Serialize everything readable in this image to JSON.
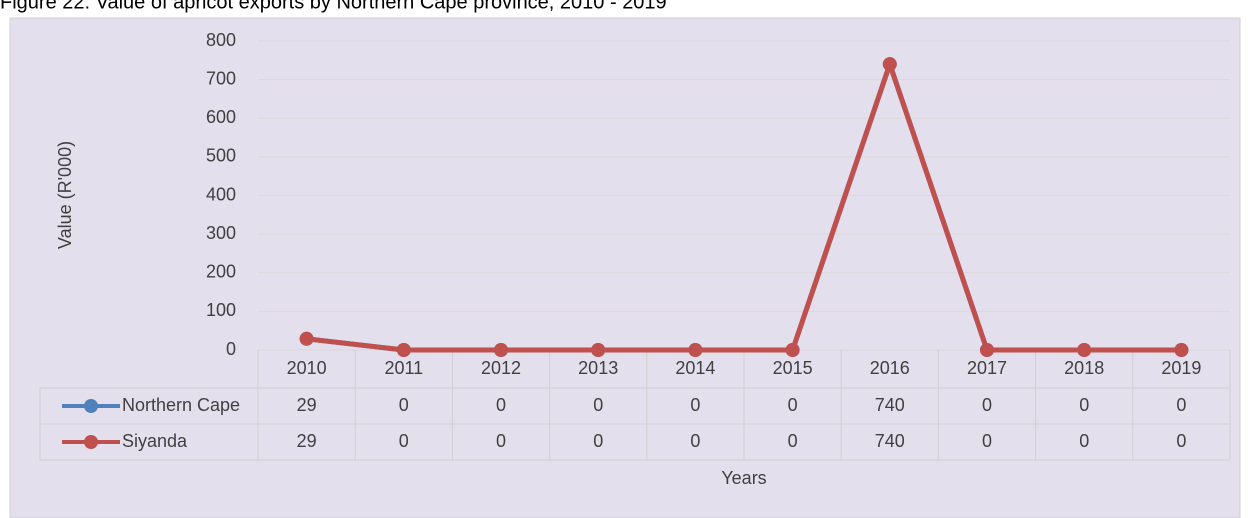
{
  "chart_data": {
    "type": "line",
    "title": "Figure 22: Value of apricot exports by Northern Cape province, 2010 - 2019",
    "x_label": "Years",
    "y_label": "Value (R'000)",
    "categories": [
      "2010",
      "2011",
      "2012",
      "2013",
      "2014",
      "2015",
      "2016",
      "2017",
      "2018",
      "2019"
    ],
    "series": [
      {
        "name": "Northern Cape",
        "color": "#4f81bd",
        "values": [
          29,
          0,
          0,
          0,
          0,
          0,
          740,
          0,
          0,
          0
        ]
      },
      {
        "name": "Siyanda",
        "color": "#c0504d",
        "values": [
          29,
          0,
          0,
          0,
          0,
          0,
          740,
          0,
          0,
          0
        ]
      }
    ],
    "ylim": [
      0,
      800
    ],
    "yticks": [
      0,
      100,
      200,
      300,
      400,
      500,
      600,
      700,
      800
    ],
    "grid": true
  }
}
